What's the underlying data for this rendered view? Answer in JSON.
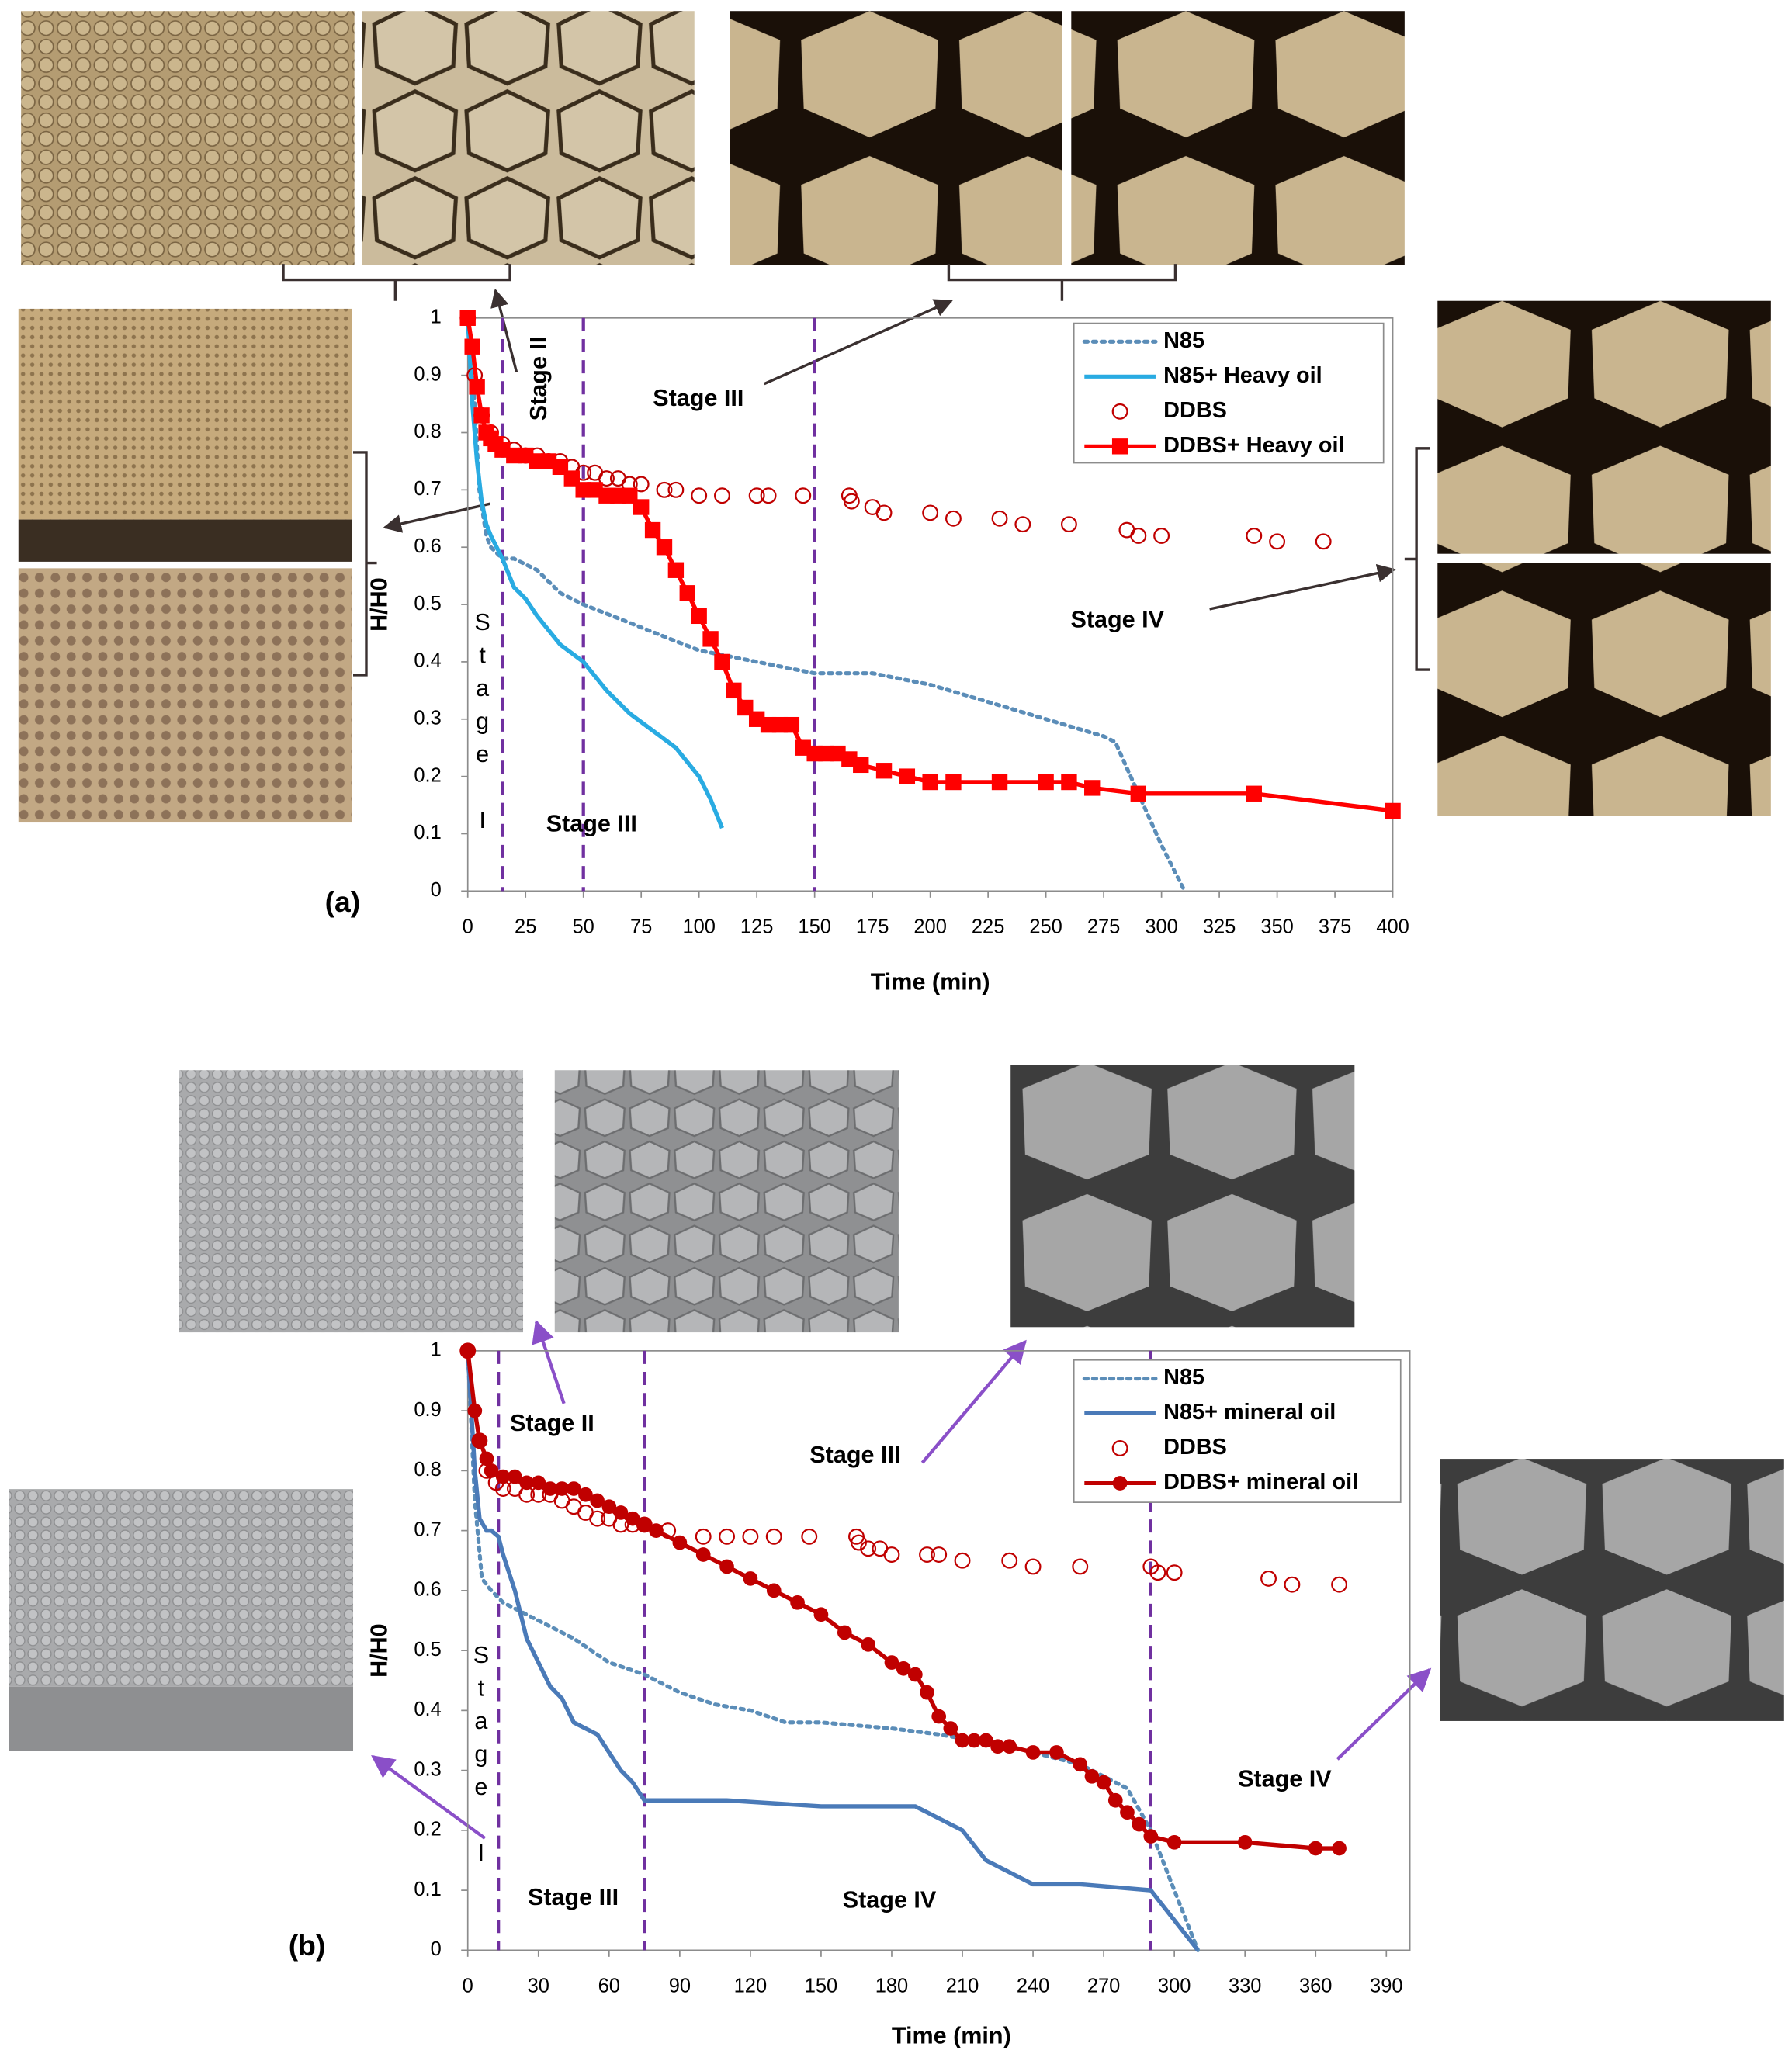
{
  "chart_data": [
    {
      "type": "line",
      "label": "(a)",
      "xlabel": "Time (min)",
      "ylabel": "H/H0",
      "xlim": [
        0,
        400
      ],
      "ylim": [
        0,
        1
      ],
      "xticks": [
        0,
        25,
        50,
        75,
        100,
        125,
        150,
        175,
        200,
        225,
        250,
        275,
        300,
        325,
        350,
        375,
        400
      ],
      "yticks": [
        0,
        0.1,
        0.2,
        0.3,
        0.4,
        0.5,
        0.6,
        0.7,
        0.8,
        0.9,
        1
      ],
      "legend": "upper right",
      "stage_lines": [
        15,
        50,
        150
      ],
      "stage_line_color": "#7030a0",
      "annotations": [
        {
          "text": "Stage II",
          "color": "#c00000"
        },
        {
          "text": "Stage III",
          "color": "#c00000"
        },
        {
          "text": "Stage IV",
          "color": "#c00000"
        },
        {
          "text": "Stage III",
          "color": "#1f9fd8"
        },
        {
          "text": "Stage I",
          "color": "#c00000"
        }
      ],
      "series": [
        {
          "name": "N85",
          "color": "#5b8db8",
          "line": "dotted",
          "x": [
            0,
            3,
            5,
            8,
            10,
            15,
            20,
            30,
            40,
            50,
            75,
            100,
            125,
            150,
            175,
            200,
            225,
            250,
            275,
            280,
            290,
            300,
            310
          ],
          "values": [
            1,
            0.85,
            0.7,
            0.62,
            0.6,
            0.58,
            0.58,
            0.56,
            0.52,
            0.5,
            0.46,
            0.42,
            0.4,
            0.38,
            0.38,
            0.36,
            0.33,
            0.3,
            0.27,
            0.26,
            0.17,
            0.08,
            0
          ]
        },
        {
          "name": "N85+ Heavy oil",
          "color": "#29abe2",
          "line": "solid",
          "x": [
            0,
            2,
            4,
            6,
            8,
            10,
            15,
            20,
            25,
            30,
            40,
            50,
            60,
            70,
            80,
            90,
            100,
            105,
            110
          ],
          "values": [
            1,
            0.85,
            0.75,
            0.68,
            0.64,
            0.62,
            0.58,
            0.53,
            0.51,
            0.48,
            0.43,
            0.4,
            0.35,
            0.31,
            0.28,
            0.25,
            0.2,
            0.16,
            0.11
          ]
        },
        {
          "name": "DDBS",
          "color": "#c00000",
          "marker": "circle-open",
          "x": [
            0,
            3,
            6,
            10,
            15,
            20,
            25,
            30,
            35,
            40,
            45,
            50,
            55,
            60,
            65,
            70,
            75,
            85,
            90,
            100,
            110,
            125,
            130,
            145,
            165,
            166,
            175,
            180,
            200,
            210,
            230,
            240,
            260,
            285,
            290,
            300,
            340,
            350,
            370
          ],
          "values": [
            1,
            0.9,
            0.83,
            0.8,
            0.78,
            0.77,
            0.76,
            0.76,
            0.75,
            0.75,
            0.74,
            0.73,
            0.73,
            0.72,
            0.72,
            0.71,
            0.71,
            0.7,
            0.7,
            0.69,
            0.69,
            0.69,
            0.69,
            0.69,
            0.69,
            0.68,
            0.67,
            0.66,
            0.66,
            0.65,
            0.65,
            0.64,
            0.64,
            0.63,
            0.62,
            0.62,
            0.62,
            0.61,
            0.61
          ]
        },
        {
          "name": "DDBS+ Heavy oil",
          "color": "#ff0000",
          "line": "solid",
          "marker": "square",
          "x": [
            0,
            2,
            4,
            6,
            8,
            10,
            12,
            15,
            20,
            25,
            30,
            35,
            40,
            45,
            50,
            55,
            60,
            65,
            70,
            75,
            80,
            85,
            90,
            95,
            100,
            105,
            110,
            115,
            120,
            125,
            130,
            135,
            140,
            145,
            150,
            155,
            160,
            165,
            170,
            180,
            190,
            200,
            210,
            230,
            250,
            260,
            270,
            290,
            340,
            400
          ],
          "values": [
            1,
            0.95,
            0.88,
            0.83,
            0.8,
            0.79,
            0.78,
            0.77,
            0.76,
            0.76,
            0.75,
            0.75,
            0.74,
            0.72,
            0.7,
            0.7,
            0.69,
            0.69,
            0.69,
            0.67,
            0.63,
            0.6,
            0.56,
            0.52,
            0.48,
            0.44,
            0.4,
            0.35,
            0.32,
            0.3,
            0.29,
            0.29,
            0.29,
            0.25,
            0.24,
            0.24,
            0.24,
            0.23,
            0.22,
            0.21,
            0.2,
            0.19,
            0.19,
            0.19,
            0.19,
            0.19,
            0.18,
            0.17,
            0.17,
            0.14
          ]
        }
      ]
    },
    {
      "type": "line",
      "label": "(b)",
      "xlabel": "Time (min)",
      "ylabel": "H/H0",
      "xlim": [
        0,
        400
      ],
      "ylim": [
        0,
        1
      ],
      "xticks": [
        0,
        30,
        60,
        90,
        120,
        150,
        180,
        210,
        240,
        270,
        300,
        330,
        360,
        390
      ],
      "yticks": [
        0,
        0.1,
        0.2,
        0.3,
        0.4,
        0.5,
        0.6,
        0.7,
        0.8,
        0.9,
        1
      ],
      "legend": "upper right",
      "stage_lines": [
        13,
        75,
        290
      ],
      "stage_line_color": "#7030a0",
      "annotations": [
        {
          "text": "Stage II",
          "color": "#c00000"
        },
        {
          "text": "Stage III",
          "color": "#c00000"
        },
        {
          "text": "Stage IV",
          "color": "#c00000"
        },
        {
          "text": "Stage III",
          "color": "#2e75b6"
        },
        {
          "text": "Stage IV",
          "color": "#2e75b6"
        },
        {
          "text": "Stage I",
          "color": "#8a4fc8"
        }
      ],
      "series": [
        {
          "name": "N85",
          "color": "#5b8db8",
          "line": "dotted",
          "x": [
            0,
            3,
            6,
            10,
            15,
            20,
            30,
            45,
            60,
            75,
            90,
            105,
            120,
            135,
            150,
            180,
            200,
            230,
            260,
            280,
            290,
            300,
            310
          ],
          "values": [
            1,
            0.75,
            0.62,
            0.6,
            0.58,
            0.57,
            0.55,
            0.52,
            0.48,
            0.46,
            0.43,
            0.41,
            0.4,
            0.38,
            0.38,
            0.37,
            0.36,
            0.34,
            0.31,
            0.27,
            0.2,
            0.1,
            0
          ]
        },
        {
          "name": "N85+ mineral oil",
          "color": "#4a7ab8",
          "line": "solid",
          "x": [
            0,
            3,
            5,
            8,
            10,
            13,
            15,
            20,
            25,
            30,
            35,
            40,
            45,
            50,
            55,
            60,
            65,
            70,
            75,
            110,
            150,
            190,
            210,
            220,
            240,
            260,
            290,
            300,
            310
          ],
          "values": [
            1,
            0.8,
            0.72,
            0.7,
            0.7,
            0.69,
            0.66,
            0.6,
            0.52,
            0.48,
            0.44,
            0.42,
            0.38,
            0.37,
            0.36,
            0.33,
            0.3,
            0.28,
            0.25,
            0.25,
            0.24,
            0.24,
            0.2,
            0.15,
            0.11,
            0.11,
            0.1,
            0.05,
            0
          ]
        },
        {
          "name": "DDBS",
          "color": "#c00000",
          "marker": "circle-open",
          "x": [
            0,
            5,
            8,
            12,
            15,
            20,
            25,
            30,
            35,
            40,
            45,
            50,
            55,
            60,
            65,
            70,
            75,
            85,
            100,
            110,
            120,
            130,
            145,
            165,
            166,
            170,
            175,
            180,
            195,
            200,
            210,
            230,
            240,
            260,
            290,
            293,
            300,
            340,
            350,
            370
          ],
          "values": [
            1,
            0.85,
            0.8,
            0.78,
            0.77,
            0.77,
            0.76,
            0.76,
            0.76,
            0.75,
            0.74,
            0.73,
            0.72,
            0.72,
            0.71,
            0.71,
            0.71,
            0.7,
            0.69,
            0.69,
            0.69,
            0.69,
            0.69,
            0.69,
            0.68,
            0.67,
            0.67,
            0.66,
            0.66,
            0.66,
            0.65,
            0.65,
            0.64,
            0.64,
            0.64,
            0.63,
            0.63,
            0.62,
            0.61,
            0.61
          ]
        },
        {
          "name": "DDBS+ mineral oil",
          "color": "#c00000",
          "line": "solid",
          "marker": "circle",
          "x": [
            0,
            3,
            5,
            8,
            10,
            15,
            20,
            25,
            30,
            35,
            40,
            45,
            50,
            55,
            60,
            65,
            70,
            75,
            80,
            90,
            100,
            110,
            120,
            130,
            140,
            150,
            160,
            170,
            180,
            185,
            190,
            195,
            200,
            205,
            210,
            215,
            220,
            225,
            230,
            240,
            250,
            260,
            265,
            270,
            275,
            280,
            285,
            290,
            300,
            330,
            360,
            370
          ],
          "values": [
            1,
            0.9,
            0.85,
            0.82,
            0.8,
            0.79,
            0.79,
            0.78,
            0.78,
            0.77,
            0.77,
            0.77,
            0.76,
            0.75,
            0.74,
            0.73,
            0.72,
            0.71,
            0.7,
            0.68,
            0.66,
            0.64,
            0.62,
            0.6,
            0.58,
            0.56,
            0.53,
            0.51,
            0.48,
            0.47,
            0.46,
            0.43,
            0.39,
            0.37,
            0.35,
            0.35,
            0.35,
            0.34,
            0.34,
            0.33,
            0.33,
            0.31,
            0.29,
            0.28,
            0.25,
            0.23,
            0.21,
            0.19,
            0.18,
            0.18,
            0.17,
            0.17
          ]
        }
      ]
    }
  ]
}
